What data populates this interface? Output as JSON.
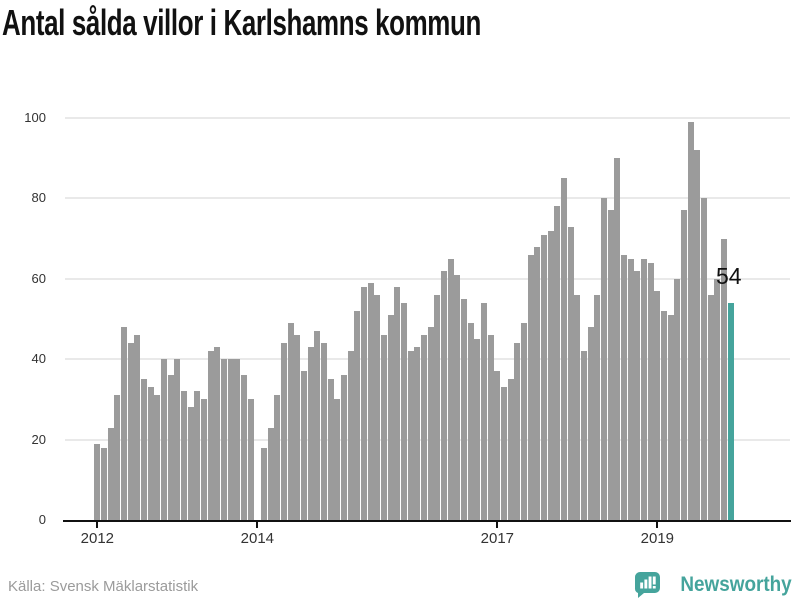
{
  "title": "Antal sålda villor i Karlshamns kommun",
  "annotation": {
    "last_value_label": "54"
  },
  "footer": {
    "source": "Källa: Svensk Mäklarstatistik",
    "brand": "Newsworthy"
  },
  "colors": {
    "bar": "#9b9b9b",
    "accent": "#45a49c",
    "grid": "#e9e9e9",
    "axis": "#111111",
    "tick_label": "#333333",
    "source_text": "#9b9b9b",
    "title_text": "#111111"
  },
  "chart_data": {
    "type": "bar",
    "title": "Antal sålda villor i Karlshamns kommun",
    "x_start": "2012-01",
    "x_end": "2019-12",
    "note": "monthly bars; no bar (0) for 2014-01; last bar highlighted teal with label 54",
    "years": [
      {
        "year": 2012,
        "monthly": [
          19,
          18,
          23,
          31,
          48,
          44,
          46,
          35,
          33,
          31,
          40,
          36
        ]
      },
      {
        "year": 2013,
        "monthly": [
          40,
          32,
          28,
          32,
          30,
          42,
          43,
          40,
          40,
          40,
          36,
          30
        ]
      },
      {
        "year": 2014,
        "monthly": [
          0,
          18,
          23,
          31,
          44,
          49,
          46,
          37,
          43,
          47,
          44,
          35
        ]
      },
      {
        "year": 2015,
        "monthly": [
          30,
          36,
          42,
          52,
          58,
          59,
          56,
          46,
          51,
          58,
          54,
          42
        ]
      },
      {
        "year": 2016,
        "monthly": [
          43,
          46,
          48,
          56,
          62,
          65,
          61,
          55,
          49,
          45,
          54,
          46
        ]
      },
      {
        "year": 2017,
        "monthly": [
          37,
          33,
          35,
          44,
          49,
          66,
          68,
          71,
          72,
          78,
          85,
          73
        ]
      },
      {
        "year": 2018,
        "monthly": [
          56,
          42,
          48,
          56,
          80,
          77,
          90,
          66,
          65,
          62,
          65,
          64
        ]
      },
      {
        "year": 2019,
        "monthly": [
          57,
          52,
          51,
          60,
          77,
          99,
          92,
          80,
          56,
          60,
          70,
          54
        ]
      }
    ],
    "highlight_last_bar": true,
    "last_value": 54,
    "ylim": [
      0,
      100
    ],
    "yticks": [
      0,
      20,
      40,
      60,
      80,
      100
    ],
    "xtick_labels": [
      "2012",
      "2014",
      "2017",
      "2019"
    ],
    "xtick_year_offsets": [
      0,
      2,
      5,
      7
    ],
    "grid": true,
    "legend": false
  }
}
